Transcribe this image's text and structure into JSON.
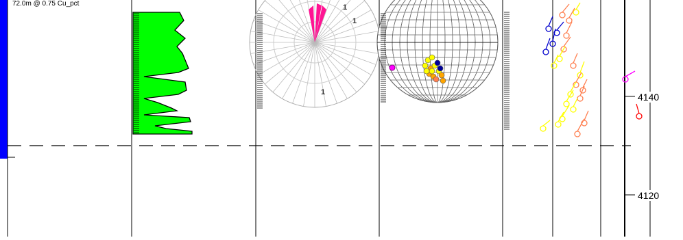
{
  "interval": {
    "label": "72.0m @ 0.75 Cu_pct",
    "bar_color": "#0000ff"
  },
  "assay_track": {
    "fill_color": "#00ff00",
    "outline_color": "#000000"
  },
  "rose_diagram": {
    "petal_color": "#ff1493",
    "count_labels": [
      "1",
      "1",
      "1"
    ]
  },
  "stereonet": {
    "grid_color": "#555555",
    "pole_colors": [
      "#ffff00",
      "#ffa500",
      "#000099",
      "#ff00ff"
    ]
  },
  "tadpole_track": {
    "colors": [
      "#ffff00",
      "#ff7f50",
      "#0000cd",
      "#ff00ff",
      "#ff0000"
    ]
  },
  "depth_axis": {
    "labels": [
      "4140",
      "4120"
    ]
  }
}
